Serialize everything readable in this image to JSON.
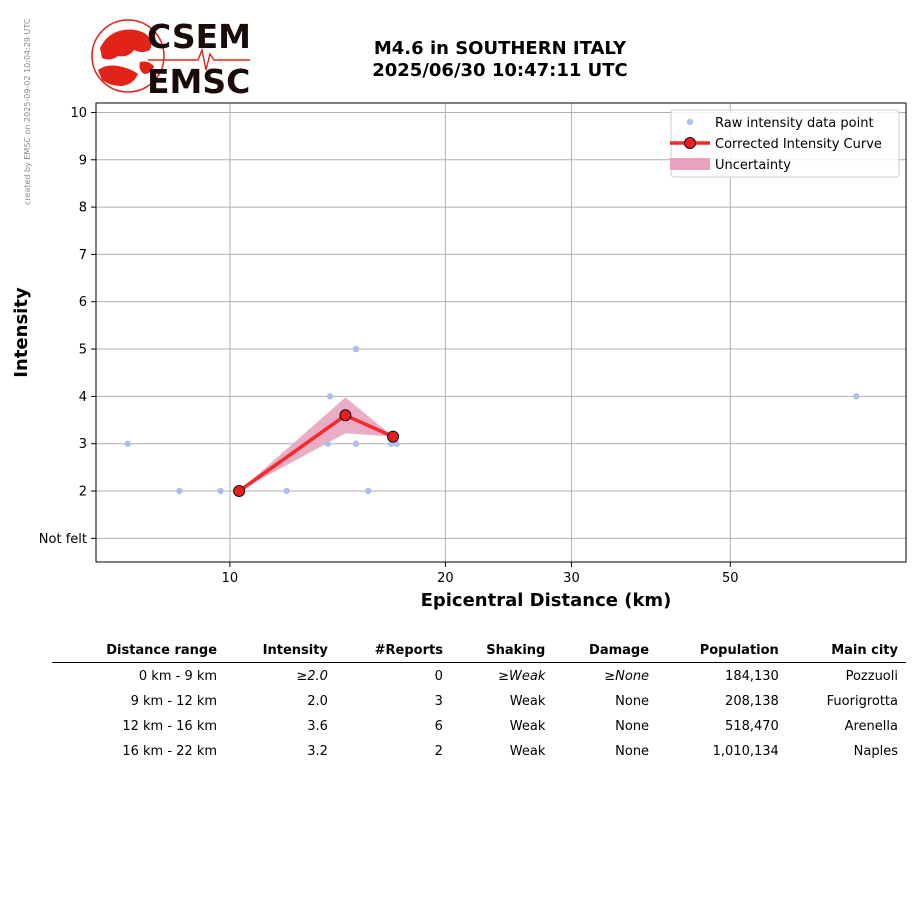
{
  "watermark": "created by EMSC on 2025-09-02 10:04:29 UTC",
  "logo": {
    "top_text": "CSEM",
    "bottom_text": "EMSC",
    "color": "#e2231a"
  },
  "title": {
    "line1": "M4.6 in SOUTHERN ITALY",
    "line2": "2025/06/30 10:47:11 UTC"
  },
  "chart_data": {
    "type": "scatter",
    "xlabel": "Epicentral Distance (km)",
    "ylabel": "Intensity",
    "x_scale": "log",
    "xlim": [
      6.5,
      88
    ],
    "ylim": [
      0.5,
      10.2
    ],
    "x_ticks": [
      10,
      20,
      30,
      50
    ],
    "x_tick_labels": [
      "10",
      "20",
      "30",
      "50"
    ],
    "y_ticks": [
      1,
      2,
      3,
      4,
      5,
      6,
      7,
      8,
      9,
      10
    ],
    "y_tick_labels": [
      "Not felt",
      "2",
      "3",
      "4",
      "5",
      "6",
      "7",
      "8",
      "9",
      "10"
    ],
    "grid": true,
    "legend_position": "top-right",
    "legend": [
      "Raw intensity data point",
      "Corrected Intensity Curve",
      "Uncertainty"
    ],
    "colors": {
      "raw": "#aebfe8",
      "curve": "#f52a2a",
      "marker_fill": "#ee1c1c",
      "uncertainty": "#e9a3bf"
    },
    "series": [
      {
        "name": "Raw intensity data point",
        "kind": "points",
        "x": [
          7.2,
          8.5,
          9.7,
          12.0,
          13.8,
          13.7,
          15.0,
          15.0,
          15.6,
          16.8,
          17.1,
          75.0
        ],
        "y": [
          3,
          2,
          2,
          2,
          4,
          3,
          5,
          3,
          2,
          3,
          3,
          4
        ]
      },
      {
        "name": "Corrected Intensity Curve",
        "kind": "line",
        "x": [
          10.3,
          14.5,
          16.9
        ],
        "y": [
          2.0,
          3.6,
          3.15
        ]
      },
      {
        "name": "Uncertainty",
        "kind": "band",
        "x": [
          10.3,
          14.5,
          16.9
        ],
        "upper": [
          2.0,
          3.98,
          3.15
        ],
        "lower": [
          2.0,
          3.22,
          3.15
        ]
      }
    ]
  },
  "table": {
    "headers": [
      "Distance range",
      "Intensity",
      "#Reports",
      "Shaking",
      "Damage",
      "Population",
      "Main city"
    ],
    "rows": [
      [
        "0 km -    9 km",
        "≥2.0",
        "0",
        "≥Weak",
        "≥None",
        "184,130",
        "Pozzuoli"
      ],
      [
        "9 km -   12 km",
        "2.0",
        "3",
        "Weak",
        "None",
        "208,138",
        "Fuorigrotta"
      ],
      [
        "12 km -   16 km",
        "3.6",
        "6",
        "Weak",
        "None",
        "518,470",
        "Arenella"
      ],
      [
        "16 km -   22 km",
        "3.2",
        "2",
        "Weak",
        "None",
        "1,010,134",
        "Naples"
      ]
    ]
  }
}
